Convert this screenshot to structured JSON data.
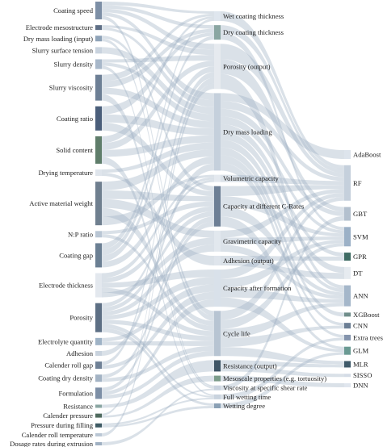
{
  "palette": {
    "link": "#9fb0c2",
    "node_colors": [
      "#7d8fa6",
      "#a7b7c9",
      "#5f7d7a",
      "#8fa3b8",
      "#6d7f95",
      "#4a5e7a",
      "#b9c6d4",
      "#8aa6a2",
      "#c9d3de",
      "#3e5a63"
    ]
  },
  "sankey": {
    "inputs": [
      {
        "label": "Coating speed",
        "h": 22,
        "color": "#7d8fa6"
      },
      {
        "label": "Electrode mesostructure",
        "h": 6,
        "color": "#5f6f86"
      },
      {
        "label": "Dry mass loading (input)",
        "h": 7,
        "color": "#8fa3b8"
      },
      {
        "label": "Slurry surface tension",
        "h": 8,
        "color": "#c9d3de"
      },
      {
        "label": "Slurry density",
        "h": 12,
        "color": "#a7b7c9"
      },
      {
        "label": "Slurry viscosity",
        "h": 32,
        "color": "#6d7f95"
      },
      {
        "label": "Coating ratio",
        "h": 30,
        "color": "#4a5e7a"
      },
      {
        "label": "Solid content",
        "h": 34,
        "color": "#5f7d6a"
      },
      {
        "label": "Drying temperature",
        "h": 8,
        "color": "#dfe5ec"
      },
      {
        "label": "Active material weight",
        "h": 54,
        "color": "#6f7f8f"
      },
      {
        "label": "N:P ratio",
        "h": 8,
        "color": "#b9c6d4"
      },
      {
        "label": "Coating gap",
        "h": 30,
        "color": "#6b7f93"
      },
      {
        "label": "Electrode thickness",
        "h": 30,
        "color": "#e3e8ee"
      },
      {
        "label": "Porosity",
        "h": 36,
        "color": "#5d6f84"
      },
      {
        "label": "Electrolyte quantity",
        "h": 9,
        "color": "#9fb3c6"
      },
      {
        "label": "Adhesion",
        "h": 6,
        "color": "#c9d3de"
      },
      {
        "label": "Calender roll gap",
        "h": 9,
        "color": "#6f8196"
      },
      {
        "label": "Coating dry density",
        "h": 9,
        "color": "#a3b3c4"
      },
      {
        "label": "Formulation",
        "h": 14,
        "color": "#7d8fa6"
      },
      {
        "label": "Resistance",
        "h": 4,
        "color": "#8aa6a2"
      },
      {
        "label": "Calender pressure",
        "h": 5,
        "color": "#4f6a5e"
      },
      {
        "label": "Pressure during filling",
        "h": 5,
        "color": "#3e5a63"
      },
      {
        "label": "Calender roll temperature",
        "h": 4,
        "color": "#b9c6d4"
      },
      {
        "label": "Dosage rates during extrusion",
        "h": 4,
        "color": "#9fb0c2"
      }
    ],
    "outputs": [
      {
        "label": "Wet coating thickness",
        "h": 12,
        "color": "#dfe6ee"
      },
      {
        "label": "Dry coating thickness",
        "h": 18,
        "color": "#8aa6a2"
      },
      {
        "label": "Porosity (output)",
        "h": 56,
        "color": "#e6eaef"
      },
      {
        "label": "Dry mass loading",
        "h": 96,
        "color": "#c5d0dc"
      },
      {
        "label": "Volumetric capacity",
        "h": 9,
        "color": "#e4e9ef"
      },
      {
        "label": "Capacity at different C-Rates",
        "h": 50,
        "color": "#6d7f95"
      },
      {
        "label": "Gravimetric capacity",
        "h": 26,
        "color": "#e2e8ee"
      },
      {
        "label": "Adhesion (output)",
        "h": 12,
        "color": "#dfe5ec"
      },
      {
        "label": "Capacity after formation",
        "h": 46,
        "color": "#d9e1ea"
      },
      {
        "label": "Cycle life",
        "h": 56,
        "color": "#b7c4d2"
      },
      {
        "label": "Resistance (output)",
        "h": 14,
        "color": "#3f5566"
      },
      {
        "label": "Mesoscale properties (e.g. tortuosity)",
        "h": 7,
        "color": "#7b9c8a"
      },
      {
        "label": "Viscosity at specific shear rate",
        "h": 6,
        "color": "#c8d2de"
      },
      {
        "label": "Full wetting time",
        "h": 6,
        "color": "#c9d3de"
      },
      {
        "label": "Wetting degree",
        "h": 6,
        "color": "#8aa0b5"
      }
    ],
    "models": [
      {
        "label": "AdaBoost",
        "h": 11,
        "color": "#dde4ec"
      },
      {
        "label": "RF",
        "h": 44,
        "color": "#c5d0dc"
      },
      {
        "label": "GBT",
        "h": 17,
        "color": "#b3c0ce"
      },
      {
        "label": "SVM",
        "h": 24,
        "color": "#9cb1c7"
      },
      {
        "label": "GPR",
        "h": 10,
        "color": "#3e6b63"
      },
      {
        "label": "DT",
        "h": 15,
        "color": "#e6ebf0"
      },
      {
        "label": "ANN",
        "h": 26,
        "color": "#a5b7ca"
      },
      {
        "label": "XGBoost",
        "h": 5,
        "color": "#6f8d8a"
      },
      {
        "label": "CNN",
        "h": 7,
        "color": "#6c7f95"
      },
      {
        "label": "Extra trees",
        "h": 7,
        "color": "#8494ad"
      },
      {
        "label": "GLM",
        "h": 10,
        "color": "#6a9a93"
      },
      {
        "label": "MLR",
        "h": 8,
        "color": "#3f5a6a"
      },
      {
        "label": "SISSO",
        "h": 4,
        "color": "#d4dce6"
      },
      {
        "label": "DNN",
        "h": 5,
        "color": "#e0e6ee"
      }
    ],
    "links_input_output": [
      [
        0,
        0
      ],
      [
        0,
        1
      ],
      [
        0,
        2
      ],
      [
        0,
        3
      ],
      [
        0,
        9
      ],
      [
        1,
        2
      ],
      [
        1,
        3
      ],
      [
        2,
        5
      ],
      [
        2,
        9
      ],
      [
        3,
        3
      ],
      [
        4,
        2
      ],
      [
        4,
        3
      ],
      [
        4,
        12
      ],
      [
        5,
        0
      ],
      [
        5,
        1
      ],
      [
        5,
        3
      ],
      [
        5,
        12
      ],
      [
        6,
        1
      ],
      [
        6,
        3
      ],
      [
        6,
        5
      ],
      [
        7,
        0
      ],
      [
        7,
        2
      ],
      [
        7,
        3
      ],
      [
        7,
        13
      ],
      [
        8,
        3
      ],
      [
        8,
        7
      ],
      [
        9,
        3
      ],
      [
        9,
        5
      ],
      [
        9,
        6
      ],
      [
        9,
        9
      ],
      [
        9,
        4
      ],
      [
        10,
        5
      ],
      [
        10,
        9
      ],
      [
        11,
        0
      ],
      [
        11,
        1
      ],
      [
        11,
        2
      ],
      [
        11,
        3
      ],
      [
        12,
        4
      ],
      [
        12,
        5
      ],
      [
        12,
        8
      ],
      [
        12,
        9
      ],
      [
        12,
        6
      ],
      [
        13,
        4
      ],
      [
        13,
        5
      ],
      [
        13,
        6
      ],
      [
        13,
        8
      ],
      [
        13,
        9
      ],
      [
        13,
        13
      ],
      [
        13,
        14
      ],
      [
        14,
        8
      ],
      [
        14,
        9
      ],
      [
        15,
        3
      ],
      [
        16,
        2
      ],
      [
        16,
        8
      ],
      [
        17,
        5
      ],
      [
        17,
        9
      ],
      [
        18,
        5
      ],
      [
        18,
        8
      ],
      [
        18,
        9
      ],
      [
        19,
        10
      ],
      [
        20,
        2
      ],
      [
        20,
        11
      ],
      [
        21,
        13
      ],
      [
        21,
        14
      ],
      [
        22,
        2
      ],
      [
        23,
        12
      ]
    ],
    "links_output_model": [
      [
        0,
        1
      ],
      [
        1,
        1
      ],
      [
        1,
        3
      ],
      [
        2,
        1
      ],
      [
        2,
        2
      ],
      [
        2,
        6
      ],
      [
        3,
        0
      ],
      [
        3,
        1
      ],
      [
        3,
        2
      ],
      [
        3,
        3
      ],
      [
        3,
        4
      ],
      [
        3,
        5
      ],
      [
        3,
        6
      ],
      [
        3,
        7
      ],
      [
        3,
        8
      ],
      [
        3,
        9
      ],
      [
        4,
        1
      ],
      [
        5,
        1
      ],
      [
        5,
        3
      ],
      [
        5,
        6
      ],
      [
        5,
        10
      ],
      [
        6,
        1
      ],
      [
        6,
        3
      ],
      [
        6,
        6
      ],
      [
        7,
        4
      ],
      [
        7,
        5
      ],
      [
        8,
        1
      ],
      [
        8,
        3
      ],
      [
        8,
        6
      ],
      [
        8,
        10
      ],
      [
        9,
        1
      ],
      [
        9,
        3
      ],
      [
        9,
        6
      ],
      [
        9,
        8
      ],
      [
        9,
        11
      ],
      [
        10,
        11
      ],
      [
        10,
        12
      ],
      [
        11,
        13
      ],
      [
        12,
        2
      ],
      [
        13,
        9
      ],
      [
        14,
        10
      ]
    ]
  }
}
